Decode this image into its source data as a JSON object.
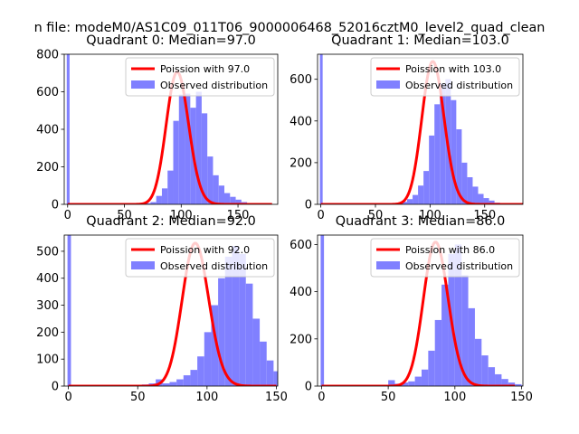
{
  "figure": {
    "suptitle": "n file: modeM0/AS1C09_011T06_9000006468_52016cztM0_level2_quad_clean"
  },
  "chart_data": [
    {
      "type": "bar",
      "title": "Quadrant 0: Median=97.0",
      "xlim": [
        -3,
        185
      ],
      "ylim": [
        0,
        800
      ],
      "xticks": [
        0,
        50,
        100,
        150
      ],
      "yticks": [
        0,
        200,
        400,
        600,
        800
      ],
      "legend_position": "top-right",
      "spike": {
        "x": 0,
        "y": 800
      },
      "hist_start": 58,
      "hist_values": [
        2,
        4,
        6,
        12,
        45,
        85,
        180,
        445,
        585,
        590,
        515,
        600,
        485,
        255,
        155,
        100,
        60,
        40,
        25,
        12,
        5,
        3
      ],
      "poisson_mean": 97,
      "poisson_peak": 705,
      "poisson_range": [
        0,
        180
      ],
      "series": [
        {
          "name": "Poission with 97.0",
          "kind": "line",
          "color": "#ff0000"
        },
        {
          "name": "Observed distribution",
          "kind": "hist",
          "color": "#8080ff"
        }
      ]
    },
    {
      "type": "bar",
      "title": "Quadrant 1: Median=103.0",
      "xlim": [
        -3,
        185
      ],
      "ylim": [
        0,
        720
      ],
      "xticks": [
        0,
        50,
        100,
        150
      ],
      "yticks": [
        0,
        200,
        400,
        600
      ],
      "legend_position": "top-right",
      "spike": {
        "x": 0,
        "y": 720
      },
      "hist_start": 64,
      "hist_values": [
        2,
        5,
        12,
        25,
        45,
        90,
        160,
        330,
        480,
        580,
        600,
        500,
        360,
        200,
        130,
        85,
        50,
        30,
        18,
        8,
        4,
        3
      ],
      "poisson_mean": 103,
      "poisson_peak": 685,
      "poisson_range": [
        0,
        185
      ],
      "series": [
        {
          "name": "Poission with 103.0",
          "kind": "line",
          "color": "#ff0000"
        },
        {
          "name": "Observed distribution",
          "kind": "hist",
          "color": "#8080ff"
        }
      ]
    },
    {
      "type": "bar",
      "title": "Quadrant 2: Median=92.0",
      "xlim": [
        -3,
        151
      ],
      "ylim": [
        0,
        560
      ],
      "xticks": [
        0,
        50,
        100,
        150
      ],
      "yticks": [
        0,
        100,
        200,
        300,
        400,
        500
      ],
      "legend_position": "top-right",
      "spike": {
        "x": 0,
        "y": 560
      },
      "hist_start": 38,
      "hist_values": [
        2,
        3,
        5,
        6,
        10,
        25,
        10,
        15,
        25,
        40,
        60,
        110,
        200,
        300,
        400,
        480,
        520,
        490,
        380,
        250,
        165,
        95,
        55,
        35,
        20,
        10,
        5
      ],
      "poisson_mean": 92,
      "poisson_peak": 530,
      "poisson_range": [
        0,
        150
      ],
      "series": [
        {
          "name": "Poission with 92.0",
          "kind": "line",
          "color": "#ff0000"
        },
        {
          "name": "Observed distribution",
          "kind": "hist",
          "color": "#8080ff"
        }
      ]
    },
    {
      "type": "bar",
      "title": "Quadrant 3: Median=86.0",
      "xlim": [
        -3,
        151
      ],
      "ylim": [
        0,
        640
      ],
      "xticks": [
        0,
        50,
        100,
        150
      ],
      "yticks": [
        0,
        200,
        400,
        600
      ],
      "legend_position": "top-right",
      "spike": {
        "x": 0,
        "y": 640
      },
      "hist_start": 45,
      "hist_values": [
        2,
        25,
        10,
        15,
        20,
        40,
        70,
        150,
        280,
        430,
        560,
        600,
        470,
        330,
        200,
        130,
        80,
        50,
        30,
        15,
        8,
        3
      ],
      "poisson_mean": 86,
      "poisson_peak": 610,
      "poisson_range": [
        0,
        145
      ],
      "series": [
        {
          "name": "Poission with 86.0",
          "kind": "line",
          "color": "#ff0000"
        },
        {
          "name": "Observed distribution",
          "kind": "hist",
          "color": "#8080ff"
        }
      ]
    }
  ]
}
